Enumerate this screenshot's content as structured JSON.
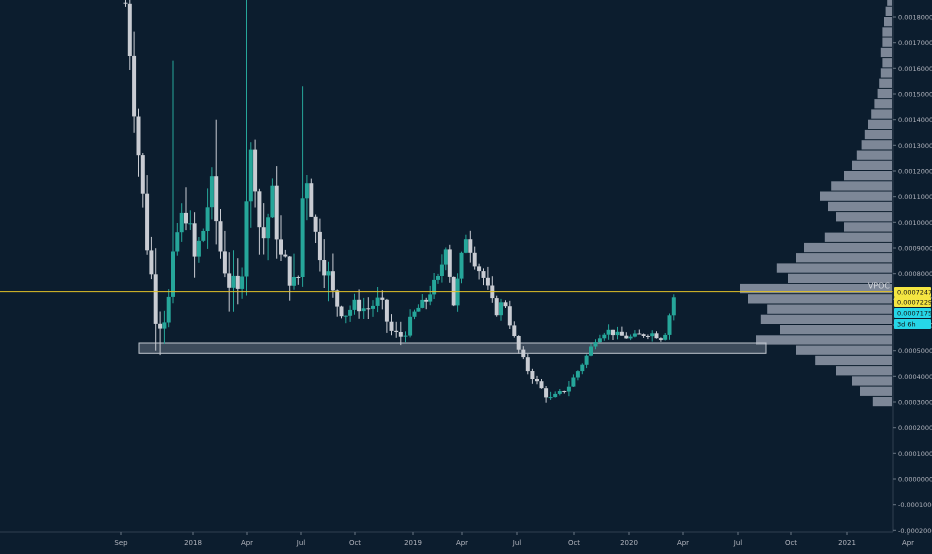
{
  "colors": {
    "background": "#0c1d2e",
    "up": "#26a69a",
    "down": "#c9ccd3",
    "volume_profile": "#8a94a3",
    "vpoc_line": "#e3c227",
    "support_zone": "#c0c6cf",
    "axis_text": "#b2b5be",
    "price_tag_yellow": "#f5e642",
    "price_tag_cyan": "#26d7e8"
  },
  "chart_data": {
    "type": "candlestick",
    "x_ticks": [
      "Sep",
      "2018",
      "Apr",
      "Jul",
      "Oct",
      "2019",
      "Apr",
      "Jul",
      "Oct",
      "2020",
      "Apr",
      "Jul",
      "Oct",
      "2021",
      "Apr"
    ],
    "y_ticks": [
      "0.0018000",
      "0.0017000",
      "0.0016000",
      "0.0015000",
      "0.0014000",
      "0.0013000",
      "0.0012000",
      "0.0011000",
      "0.0010000",
      "0.0009000",
      "0.0008000",
      "0.0007000",
      "0.0006000",
      "0.0005000",
      "0.0004000",
      "0.0003000",
      "0.0002000",
      "0.0001000",
      "0.0000000",
      "-0.0001000",
      "-0.0002000"
    ],
    "ylim": [
      -0.00021,
      0.00188
    ],
    "price_tags": [
      {
        "label": "0.0007247",
        "value": 0.0007247,
        "color": "yellow"
      },
      {
        "label": "0.0007229",
        "value": 0.0007229,
        "color": "yellow"
      },
      {
        "label": "0.0007175",
        "value": 0.0007175,
        "color": "cyan"
      },
      {
        "label": "3d 6h",
        "value": 0.00067,
        "color": "cyan"
      }
    ],
    "vpoc": {
      "label": "VPOC",
      "value": 0.00073
    },
    "support_zone": {
      "low": 0.00049,
      "high": 0.00053
    },
    "candles": [],
    "volume_profile": []
  }
}
